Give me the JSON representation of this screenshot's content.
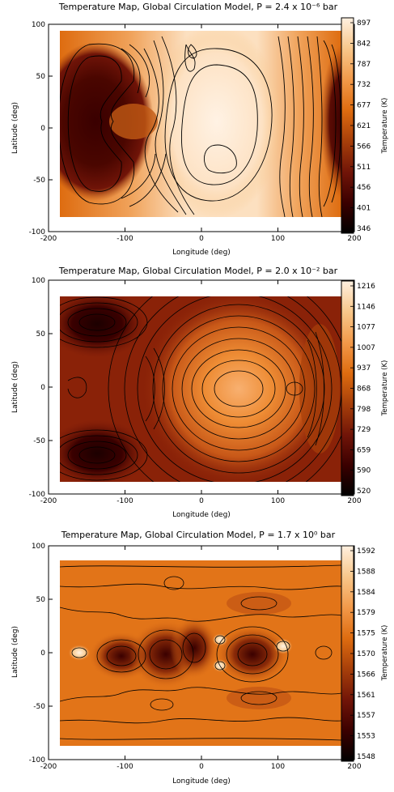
{
  "chart_data": [
    {
      "type": "heatmap",
      "title": "Temperature Map, Global Circulation Model, P = 2.4 x 10⁻⁶ bar",
      "xlabel": "Longitude (deg)",
      "ylabel": "Latitude (deg)",
      "colorbar_label": "Temperature (K)",
      "xlim": [
        -200,
        200
      ],
      "ylim": [
        -100,
        100
      ],
      "x_ticks": [
        -200,
        -100,
        0,
        100,
        200
      ],
      "y_ticks": [
        -100,
        -50,
        0,
        50,
        100
      ],
      "colorbar_ticks": [
        "897",
        "842",
        "787",
        "732",
        "677",
        "621",
        "566",
        "511",
        "456",
        "401",
        "346"
      ],
      "temperature_range": [
        346,
        897
      ],
      "data_extent": {
        "lon": [
          -180,
          180
        ],
        "lat": [
          -86,
          86
        ]
      },
      "contours": true,
      "colormap": [
        "#000000",
        "#3a0000",
        "#701408",
        "#a8400a",
        "#de6c10",
        "#f29848",
        "#f8c88c",
        "#fff0e0"
      ],
      "colorbar_position": "right"
    },
    {
      "type": "heatmap",
      "title": "Temperature Map, Global Circulation Model, P = 2.0 x 10⁻² bar",
      "xlabel": "Longitude (deg)",
      "ylabel": "Latitude (deg)",
      "colorbar_label": "Temperature (K)",
      "xlim": [
        -200,
        200
      ],
      "ylim": [
        -100,
        100
      ],
      "x_ticks": [
        -200,
        -100,
        0,
        100,
        200
      ],
      "y_ticks": [
        -100,
        -50,
        0,
        50,
        100
      ],
      "colorbar_ticks": [
        "1216",
        "1146",
        "1077",
        "1007",
        "937",
        "868",
        "798",
        "729",
        "659",
        "590",
        "520"
      ],
      "temperature_range": [
        520,
        1216
      ],
      "data_extent": {
        "lon": [
          -180,
          180
        ],
        "lat": [
          -86,
          86
        ]
      },
      "contours": true,
      "colormap": [
        "#000000",
        "#3a0000",
        "#701408",
        "#a8400a",
        "#de6c10",
        "#f29848",
        "#f8c88c",
        "#fff0e0"
      ],
      "colorbar_position": "right"
    },
    {
      "type": "heatmap",
      "title": "Temperature Map, Global Circulation Model, P = 1.7 x 10⁰ bar",
      "xlabel": "Longitude (deg)",
      "ylabel": "Latitude (deg)",
      "colorbar_label": "Temperature (K)",
      "xlim": [
        -200,
        200
      ],
      "ylim": [
        -100,
        100
      ],
      "x_ticks": [
        -200,
        -100,
        0,
        100,
        200
      ],
      "y_ticks": [
        -100,
        -50,
        0,
        50,
        100
      ],
      "colorbar_ticks": [
        "1592",
        "1588",
        "1584",
        "1579",
        "1575",
        "1570",
        "1566",
        "1561",
        "1557",
        "1553",
        "1548"
      ],
      "temperature_range": [
        1548,
        1592
      ],
      "data_extent": {
        "lon": [
          -180,
          180
        ],
        "lat": [
          -86,
          86
        ]
      },
      "contours": true,
      "colormap": [
        "#000000",
        "#3a0000",
        "#701408",
        "#a8400a",
        "#de6c10",
        "#f29848",
        "#f8c88c",
        "#fff0e0"
      ],
      "colorbar_position": "right"
    }
  ]
}
